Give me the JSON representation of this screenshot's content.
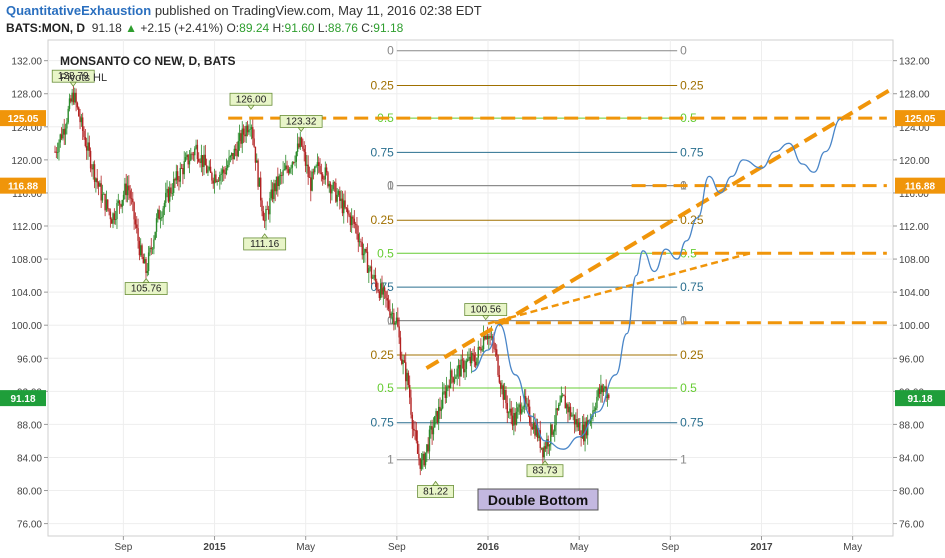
{
  "header": {
    "author": "QuantitativeExhaustion",
    "published": "published on TradingView.com, May 11, 2016 02:38 EDT",
    "symbol": "BATS:MON, D",
    "last": "91.18",
    "change": "+2.15 (+2.41%)",
    "o_label": "O:",
    "o": "89.24",
    "h_label": "H:",
    "h": "91.60",
    "l_label": "L:",
    "l": "88.76",
    "c_label": "C:",
    "c": "91.18"
  },
  "chart_data": {
    "type": "candlestick",
    "title": "MONSANTO CO NEW, D, BATS",
    "subtitle": "Pivots HL",
    "ylim": [
      74.5,
      134.5
    ],
    "y_ticks": [
      "76.00",
      "80.00",
      "84.00",
      "88.00",
      "92.00",
      "96.00",
      "100.00",
      "104.00",
      "108.00",
      "112.00",
      "116.00",
      "120.00",
      "124.00",
      "128.00",
      "132.00"
    ],
    "x_ticks": [
      {
        "label": "Sep",
        "t": 3
      },
      {
        "label": "2015",
        "t": 7
      },
      {
        "label": "May",
        "t": 11
      },
      {
        "label": "Sep",
        "t": 15
      },
      {
        "label": "2016",
        "t": 19
      },
      {
        "label": "May",
        "t": 23
      },
      {
        "label": "Sep",
        "t": 27
      },
      {
        "label": "2017",
        "t": 31
      },
      {
        "label": "May",
        "t": 35
      }
    ],
    "price_badges": [
      {
        "value": 125.05,
        "text": "125.05",
        "color": "#f0950a"
      },
      {
        "value": 116.88,
        "text": "116.88",
        "color": "#f0950a"
      },
      {
        "value": 91.18,
        "text": "91.18",
        "color": "#1f9e3a"
      }
    ],
    "pivots": [
      {
        "text": "128.79",
        "t": 0.8,
        "v": 128.79,
        "pos": "above"
      },
      {
        "text": "105.76",
        "t": 4.0,
        "v": 105.76,
        "pos": "below"
      },
      {
        "text": "126.00",
        "t": 8.6,
        "v": 126.0,
        "pos": "above"
      },
      {
        "text": "111.16",
        "t": 9.2,
        "v": 111.16,
        "pos": "below"
      },
      {
        "text": "123.32",
        "t": 10.8,
        "v": 123.32,
        "pos": "above"
      },
      {
        "text": "81.22",
        "t": 16.7,
        "v": 81.22,
        "pos": "below"
      },
      {
        "text": "100.56",
        "t": 18.9,
        "v": 100.56,
        "pos": "above"
      },
      {
        "text": "83.73",
        "t": 21.5,
        "v": 83.73,
        "pos": "below"
      }
    ],
    "fib_upper": {
      "t_start": 15,
      "t_end": 27.3,
      "levels": [
        {
          "label": "0",
          "value": 133.2,
          "color": "#888888"
        },
        {
          "label": "0.25",
          "value": 129.0,
          "color": "#a07000"
        },
        {
          "label": "0.5",
          "value": 125.05,
          "color": "#66cc33"
        },
        {
          "label": "0.75",
          "value": 120.9,
          "color": "#2a6f8f"
        },
        {
          "label": "1",
          "value": 116.88,
          "color": "#888888"
        }
      ]
    },
    "fib_middle": {
      "t_start": 15,
      "t_end": 27.3,
      "levels": [
        {
          "label": "0",
          "value": 116.88,
          "color": "#888888"
        },
        {
          "label": "0.25",
          "value": 112.7,
          "color": "#a07000"
        },
        {
          "label": "0.5",
          "value": 108.7,
          "color": "#66cc33"
        },
        {
          "label": "0.75",
          "value": 104.6,
          "color": "#2a6f8f"
        },
        {
          "label": "1",
          "value": 100.56,
          "color": "#888888"
        }
      ]
    },
    "fib_lower": {
      "t_start": 15,
      "t_end": 27.3,
      "levels": [
        {
          "label": "0",
          "value": 100.56,
          "color": "#888888"
        },
        {
          "label": "0.25",
          "value": 96.4,
          "color": "#a07000"
        },
        {
          "label": "0.5",
          "value": 92.4,
          "color": "#66cc33"
        },
        {
          "label": "0.75",
          "value": 88.2,
          "color": "#2a6f8f"
        },
        {
          "label": "1",
          "value": 83.73,
          "color": "#888888"
        }
      ]
    },
    "horizontal_levels": [
      {
        "value": 125.05,
        "t_start": 7.6,
        "t_end": 36.5
      },
      {
        "value": 116.88,
        "t_start": 25.3,
        "t_end": 36.5
      },
      {
        "value": 108.7,
        "t_start": 26.2,
        "t_end": 36.5
      },
      {
        "value": 100.3,
        "t_start": 19.3,
        "t_end": 36.5
      }
    ],
    "trendlines": [
      {
        "t1": 16.3,
        "v1": 94.8,
        "t2": 36.6,
        "v2": 128.4,
        "style": "dash"
      },
      {
        "t1": 19.0,
        "v1": 100.2,
        "t2": 30.5,
        "v2": 108.7,
        "style": "dash-fine"
      }
    ],
    "projection_path": [
      [
        18.3,
        94.4
      ],
      [
        19.0,
        97.0
      ],
      [
        19.5,
        100.1
      ],
      [
        20.2,
        94.0
      ],
      [
        20.9,
        89.0
      ],
      [
        21.5,
        86.0
      ],
      [
        22.3,
        85.0
      ],
      [
        23.0,
        86.5
      ],
      [
        23.8,
        89.5
      ],
      [
        24.6,
        94.0
      ],
      [
        25.1,
        99.0
      ],
      [
        25.5,
        106.0
      ],
      [
        25.8,
        109.0
      ],
      [
        26.3,
        106.5
      ],
      [
        26.8,
        109.2
      ],
      [
        27.3,
        108.0
      ],
      [
        27.7,
        110.2
      ],
      [
        28.2,
        113.0
      ],
      [
        28.7,
        118.0
      ],
      [
        29.2,
        116.0
      ],
      [
        29.7,
        118.0
      ],
      [
        30.2,
        120.0
      ],
      [
        31.0,
        119.0
      ],
      [
        31.6,
        121.0
      ],
      [
        32.2,
        122.0
      ],
      [
        32.8,
        119.5
      ],
      [
        33.3,
        118.5
      ],
      [
        33.8,
        121.0
      ],
      [
        34.5,
        125.0
      ]
    ],
    "annotation": "Double Bottom",
    "candle_keypoints": [
      [
        0,
        121.0
      ],
      [
        0.4,
        124.0
      ],
      [
        0.8,
        128.0
      ],
      [
        1.4,
        121.5
      ],
      [
        2.0,
        116.0
      ],
      [
        2.5,
        113.0
      ],
      [
        3.2,
        117.0
      ],
      [
        3.8,
        108.0
      ],
      [
        4.0,
        106.5
      ],
      [
        4.5,
        113.0
      ],
      [
        5.0,
        116.0
      ],
      [
        5.6,
        119.0
      ],
      [
        6.2,
        121.5
      ],
      [
        6.8,
        118.0
      ],
      [
        7.4,
        118.5
      ],
      [
        7.9,
        121.0
      ],
      [
        8.4,
        124.0
      ],
      [
        8.6,
        125.0
      ],
      [
        8.9,
        118.0
      ],
      [
        9.2,
        112.5
      ],
      [
        9.6,
        116.5
      ],
      [
        10.2,
        119.0
      ],
      [
        10.6,
        121.0
      ],
      [
        10.8,
        122.0
      ],
      [
        11.2,
        117.0
      ],
      [
        11.6,
        119.5
      ],
      [
        12.0,
        117.5
      ],
      [
        12.4,
        115.5
      ],
      [
        12.8,
        113.5
      ],
      [
        13.2,
        112.0
      ],
      [
        13.5,
        109.0
      ],
      [
        13.9,
        106.0
      ],
      [
        14.3,
        104.0
      ],
      [
        14.7,
        102.0
      ],
      [
        15.0,
        100.5
      ],
      [
        15.2,
        96.0
      ],
      [
        15.5,
        93.0
      ],
      [
        15.7,
        88.0
      ],
      [
        15.9,
        84.5
      ],
      [
        16.1,
        83.0
      ],
      [
        16.5,
        87.0
      ],
      [
        16.9,
        90.0
      ],
      [
        17.3,
        93.5
      ],
      [
        17.7,
        94.5
      ],
      [
        18.1,
        95.5
      ],
      [
        18.5,
        96.0
      ],
      [
        18.9,
        99.5
      ],
      [
        19.3,
        97.0
      ],
      [
        19.6,
        92.5
      ],
      [
        19.9,
        89.5
      ],
      [
        20.2,
        88.5
      ],
      [
        20.5,
        91.0
      ],
      [
        20.8,
        89.0
      ],
      [
        21.1,
        87.5
      ],
      [
        21.4,
        85.0
      ],
      [
        21.7,
        86.5
      ],
      [
        22.0,
        89.0
      ],
      [
        22.3,
        91.0
      ],
      [
        22.6,
        89.5
      ],
      [
        22.9,
        88.0
      ],
      [
        23.2,
        87.0
      ],
      [
        23.5,
        89.0
      ],
      [
        23.8,
        91.5
      ],
      [
        24.1,
        92.5
      ],
      [
        24.3,
        91.18
      ]
    ]
  }
}
